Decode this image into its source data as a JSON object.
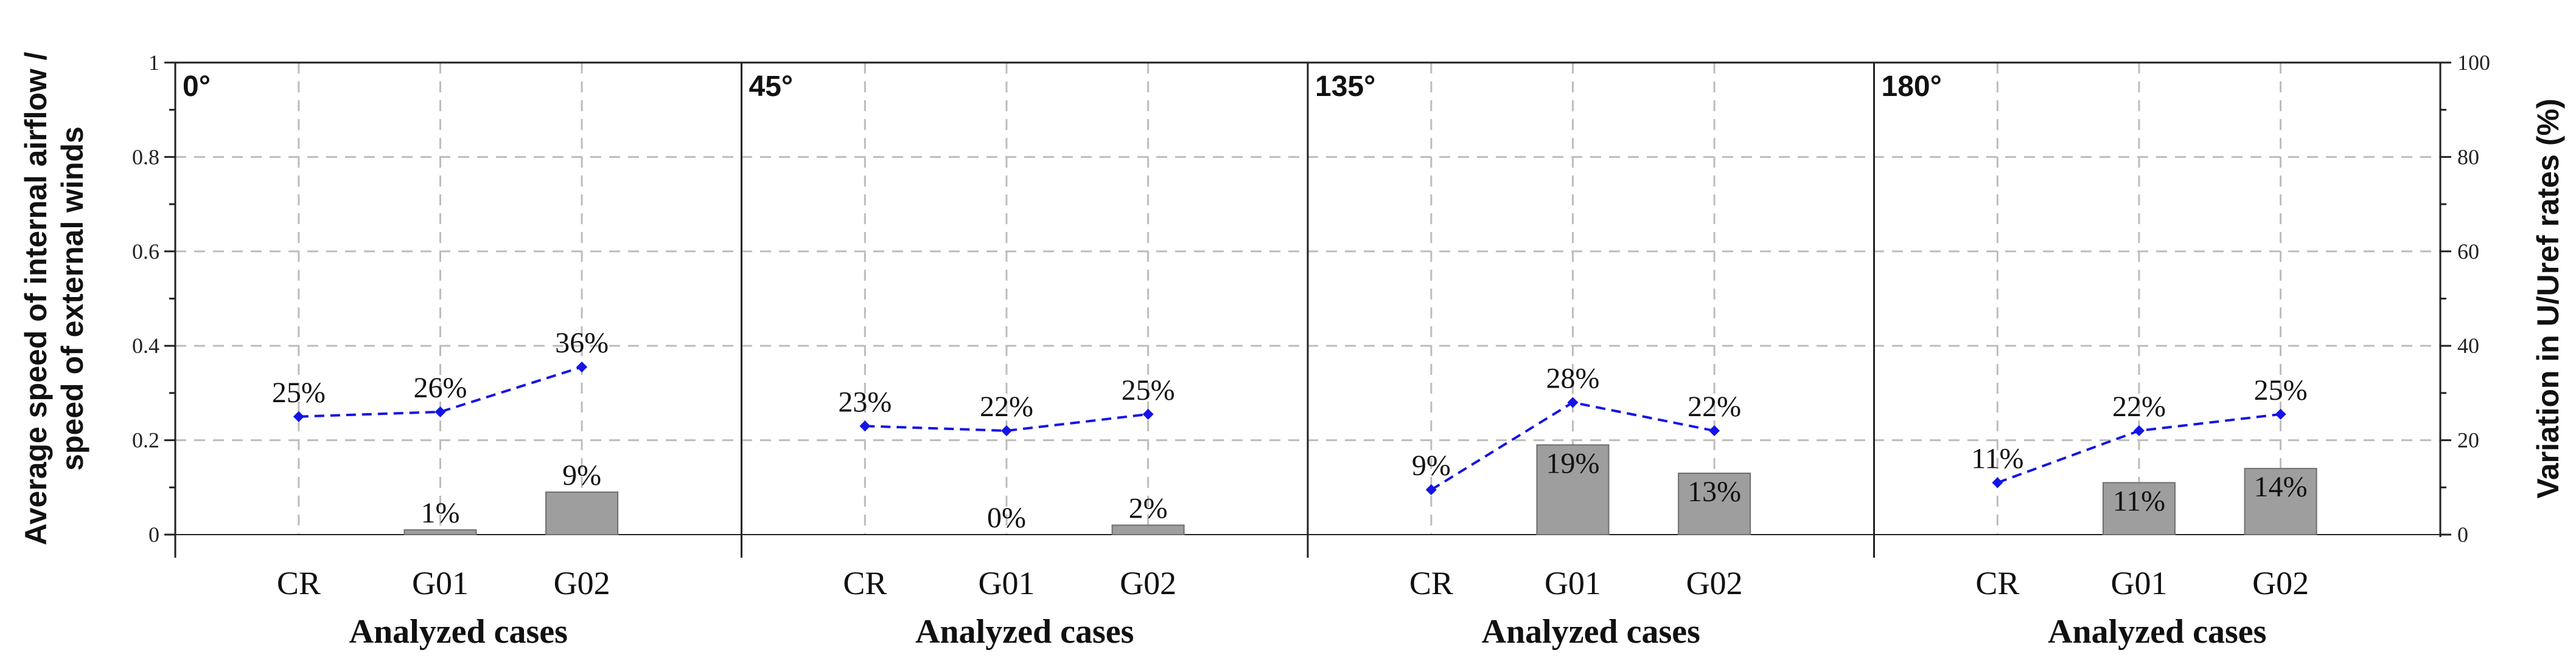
{
  "chart_data": {
    "type": "bar+line",
    "ylabel_lines": [
      "Average speed of internal airflow /",
      "speed of external winds"
    ],
    "y2label": "Variation in U/Uref rates (%)",
    "xlabel": "Analyzed cases",
    "categories": [
      "CR",
      "G01",
      "G02"
    ],
    "ylim": [
      0,
      1
    ],
    "y2lim": [
      0,
      100
    ],
    "yticks": [
      "0",
      "0.2",
      "0.4",
      "0.6",
      "0.8",
      "1"
    ],
    "y2ticks": [
      "0",
      "20",
      "40",
      "60",
      "80",
      "100"
    ],
    "grid": true,
    "colors": {
      "bar": "#9e9e9e",
      "bar_edge": "#6e6e6e",
      "line": "#1414e6",
      "grid": "#bdbdbd",
      "axis": "#222222"
    },
    "panels": [
      {
        "title": "0°",
        "bar_values": [
          0,
          0.01,
          0.09
        ],
        "bar_labels": [
          "",
          "1%",
          "9%"
        ],
        "line_values": [
          0.25,
          0.26,
          0.355
        ],
        "line_labels": [
          "25%",
          "26%",
          "36%"
        ]
      },
      {
        "title": "45°",
        "bar_values": [
          0,
          0,
          0.02
        ],
        "bar_labels": [
          "",
          "0%",
          "2%"
        ],
        "line_values": [
          0.23,
          0.22,
          0.255
        ],
        "line_labels": [
          "23%",
          "22%",
          "25%"
        ]
      },
      {
        "title": "135°",
        "bar_values": [
          0,
          0.19,
          0.13
        ],
        "bar_labels": [
          "",
          "19%",
          "13%"
        ],
        "line_values": [
          0.095,
          0.28,
          0.22
        ],
        "line_labels": [
          "9%",
          "28%",
          "22%"
        ]
      },
      {
        "title": "180°",
        "bar_values": [
          0,
          0.11,
          0.14
        ],
        "bar_labels": [
          "",
          "11%",
          "14%"
        ],
        "line_values": [
          0.11,
          0.22,
          0.255
        ],
        "line_labels": [
          "11%",
          "22%",
          "25%"
        ]
      }
    ]
  }
}
